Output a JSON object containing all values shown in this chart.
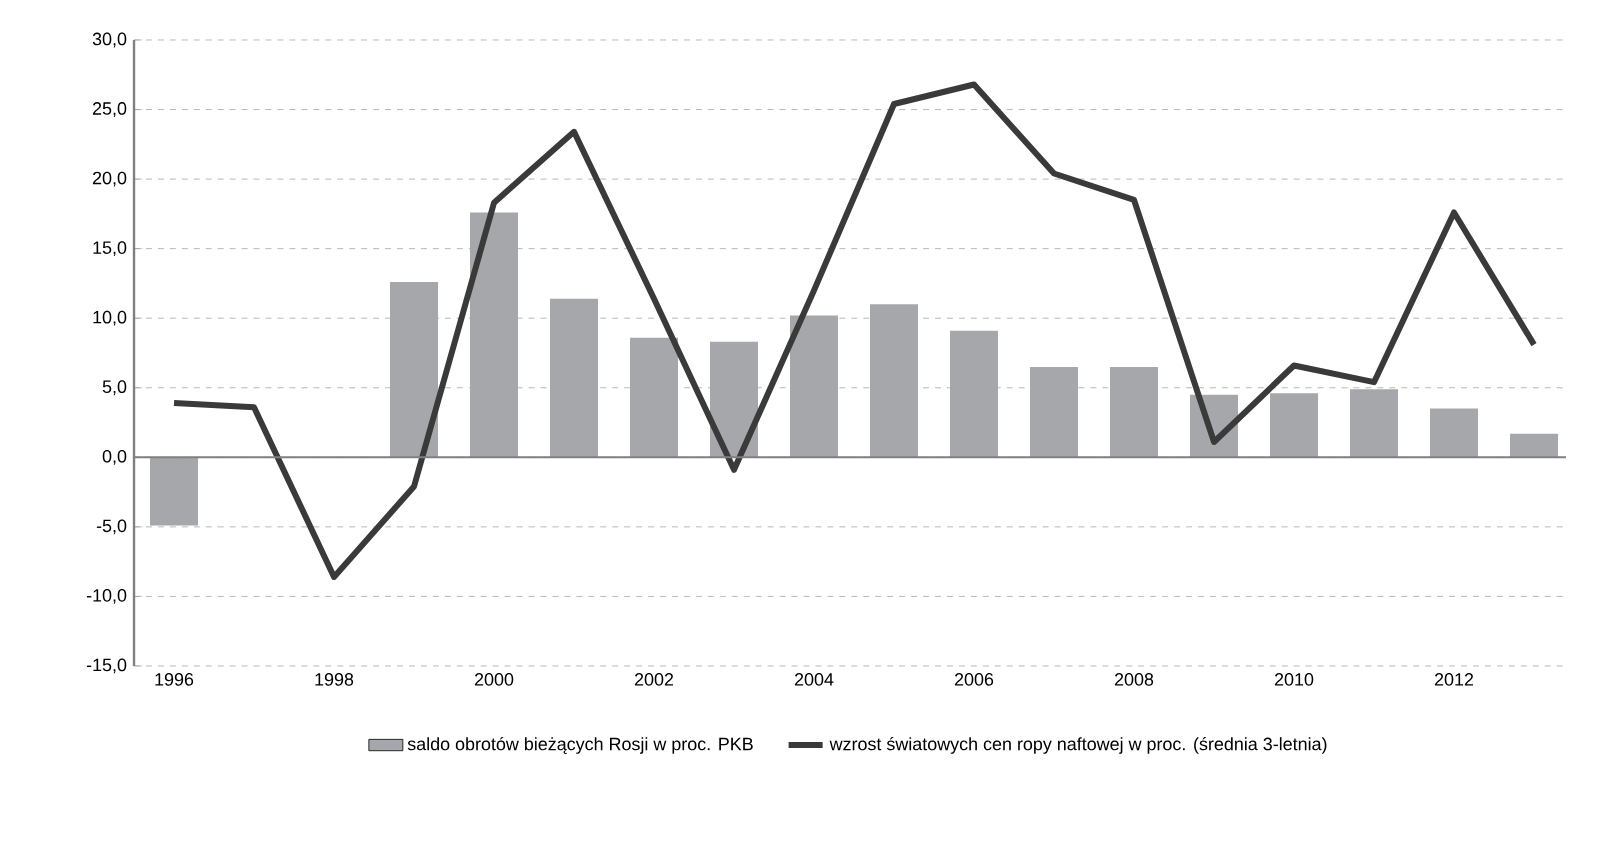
{
  "chart_data": {
    "type": "bar",
    "x": [
      1996,
      1997,
      1998,
      1999,
      2000,
      2001,
      2002,
      2003,
      2004,
      2005,
      2006,
      2007,
      2008,
      2009,
      2010,
      2011,
      2012,
      2013
    ],
    "series": [
      {
        "name": "saldo obrotów bieżących Rosji w proc. PKB",
        "color": "#a6a7aa",
        "values": [
          -4.9,
          null,
          null,
          12.6,
          17.6,
          11.4,
          8.6,
          8.3,
          10.2,
          11.0,
          9.1,
          6.5,
          6.5,
          4.5,
          4.6,
          4.9,
          3.5,
          1.7
        ]
      },
      {
        "name": "wzrost światowych cen ropy naftowej w proc. (średnia 3-letnia)",
        "type": "line",
        "color": "#3a3a3a",
        "values": [
          3.9,
          3.6,
          -8.6,
          -2.1,
          18.3,
          23.4,
          11.4,
          -0.9,
          12.0,
          25.4,
          26.8,
          20.4,
          18.5,
          1.1,
          6.6,
          5.4,
          17.6,
          8.1
        ]
      }
    ],
    "xlim": [
      1995.5,
      2013.4
    ],
    "xticks": [
      1996,
      1998,
      2000,
      2002,
      2004,
      2006,
      2008,
      2010,
      2012
    ],
    "ylim": [
      -15,
      30
    ],
    "yticks": [
      {
        "value": -15,
        "label": "-15,0"
      },
      {
        "value": -10,
        "label": "-10,0"
      },
      {
        "value": -5,
        "label": "-5,0"
      },
      {
        "value": 0,
        "label": "0,0"
      },
      {
        "value": 5,
        "label": "5,0"
      },
      {
        "value": 10,
        "label": "10,0"
      },
      {
        "value": 15,
        "label": "15,0"
      },
      {
        "value": 20,
        "label": "20,0"
      },
      {
        "value": 25,
        "label": "25,0"
      },
      {
        "value": 30,
        "label": "30,0"
      }
    ],
    "grid": "y",
    "legend": "bottom",
    "marker": "none",
    "line_style": "solid"
  }
}
